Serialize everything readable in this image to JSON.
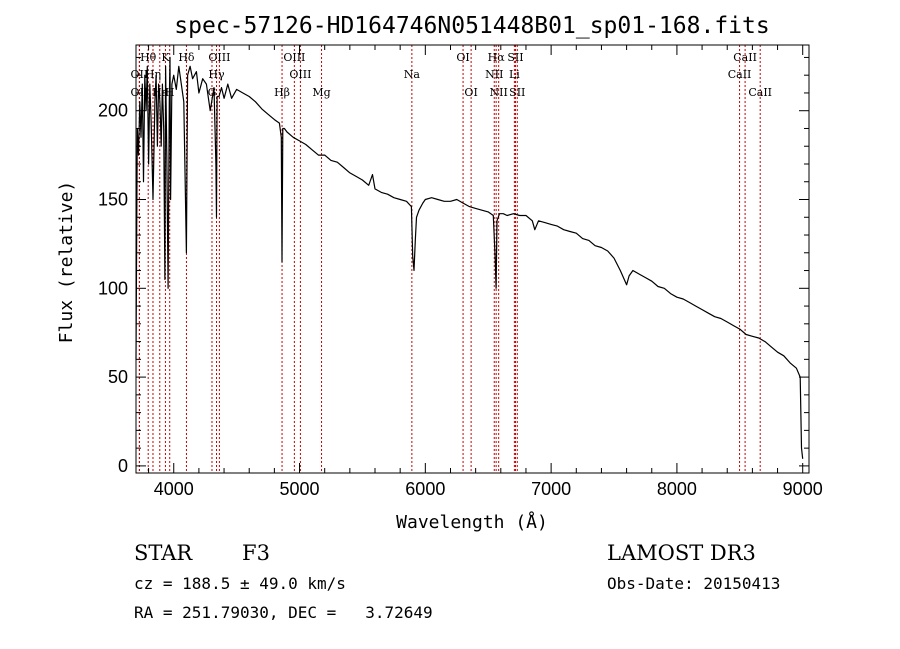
{
  "chart_data": {
    "type": "line",
    "title": "spec-57126-HD164746N051448B01_sp01-168.fits",
    "xlabel": "Wavelength (Å)",
    "ylabel": "Flux (relative)",
    "xlim": [
      3700,
      9050
    ],
    "ylim": [
      -4,
      237
    ],
    "xticks": [
      4000,
      5000,
      6000,
      7000,
      8000,
      9000
    ],
    "yticks": [
      0,
      50,
      100,
      150,
      200
    ],
    "series": [
      {
        "name": "spectrum",
        "x": [
          3700,
          3710,
          3720,
          3730,
          3740,
          3750,
          3760,
          3770,
          3780,
          3790,
          3800,
          3810,
          3820,
          3835,
          3850,
          3860,
          3870,
          3880,
          3890,
          3900,
          3910,
          3920,
          3930,
          3935,
          3945,
          3955,
          3965,
          3970,
          3975,
          3985,
          4000,
          4020,
          4040,
          4060,
          4080,
          4101,
          4110,
          4130,
          4150,
          4180,
          4200,
          4230,
          4260,
          4290,
          4320,
          4335,
          4340,
          4345,
          4360,
          4380,
          4400,
          4430,
          4460,
          4500,
          4550,
          4600,
          4650,
          4700,
          4750,
          4800,
          4840,
          4855,
          4861,
          4867,
          4880,
          4900,
          4950,
          5000,
          5050,
          5100,
          5150,
          5200,
          5250,
          5300,
          5350,
          5400,
          5450,
          5500,
          5550,
          5580,
          5600,
          5650,
          5700,
          5750,
          5800,
          5850,
          5889,
          5900,
          5910,
          5920,
          5930,
          5950,
          5980,
          6000,
          6050,
          6100,
          6150,
          6200,
          6250,
          6300,
          6350,
          6400,
          6450,
          6500,
          6540,
          6555,
          6563,
          6570,
          6590,
          6620,
          6650,
          6700,
          6750,
          6800,
          6850,
          6870,
          6900,
          6950,
          7000,
          7050,
          7100,
          7150,
          7200,
          7250,
          7300,
          7350,
          7400,
          7450,
          7500,
          7550,
          7600,
          7620,
          7650,
          7700,
          7750,
          7800,
          7850,
          7900,
          7950,
          8000,
          8050,
          8100,
          8150,
          8200,
          8250,
          8300,
          8350,
          8400,
          8450,
          8500,
          8550,
          8600,
          8650,
          8700,
          8750,
          8800,
          8850,
          8900,
          8950,
          8980,
          8990,
          9000
        ],
        "y": [
          60,
          190,
          175,
          205,
          185,
          215,
          160,
          220,
          200,
          225,
          170,
          215,
          195,
          150,
          205,
          220,
          180,
          215,
          205,
          180,
          215,
          190,
          105,
          225,
          175,
          100,
          205,
          230,
          150,
          215,
          220,
          212,
          225,
          215,
          205,
          120,
          220,
          225,
          218,
          222,
          210,
          218,
          215,
          200,
          213,
          170,
          140,
          208,
          208,
          213,
          207,
          215,
          207,
          212,
          210,
          208,
          205,
          201,
          198,
          195,
          193,
          185,
          115,
          190,
          190,
          188,
          185,
          183,
          181,
          178,
          175,
          175,
          172,
          171,
          168,
          165,
          163,
          161,
          158,
          164,
          156,
          154,
          153,
          151,
          150,
          149,
          146,
          118,
          110,
          127,
          140,
          144,
          148,
          150,
          151,
          150,
          149,
          149,
          150,
          148,
          146,
          145,
          144,
          143,
          141,
          118,
          100,
          138,
          142,
          142,
          141,
          142,
          141,
          141,
          138,
          133,
          138,
          137,
          136,
          135,
          133,
          132,
          131,
          128,
          127,
          124,
          123,
          121,
          117,
          110,
          102,
          107,
          110,
          108,
          106,
          104,
          101,
          100,
          97,
          95,
          94,
          92,
          90,
          88,
          86,
          84,
          83,
          81,
          79,
          77,
          74,
          73,
          72,
          70,
          67,
          64,
          62,
          58,
          55,
          50,
          10,
          4
        ]
      }
    ],
    "spectral_lines": [
      {
        "label": "Hθ",
        "wl": 3797,
        "row": 1
      },
      {
        "label": "OII",
        "wl": 3727,
        "row": 2
      },
      {
        "label": "Hη",
        "wl": 3835,
        "row": 2
      },
      {
        "label": "OII",
        "wl": 3727,
        "row": 3
      },
      {
        "label": "Hε",
        "wl": 3889,
        "row": 3
      },
      {
        "label": "K",
        "wl": 3934,
        "row": 1
      },
      {
        "label": "H",
        "wl": 3968,
        "row": 3
      },
      {
        "label": "Hδ",
        "wl": 4101,
        "row": 1
      },
      {
        "label": "G",
        "wl": 4304,
        "row": 3
      },
      {
        "label": "OIII",
        "wl": 4363,
        "row": 1
      },
      {
        "label": "Hγ",
        "wl": 4340,
        "row": 2
      },
      {
        "label": "Hβ",
        "wl": 4861,
        "row": 3
      },
      {
        "label": "OIII",
        "wl": 4959,
        "row": 1
      },
      {
        "label": "OIII",
        "wl": 5007,
        "row": 2
      },
      {
        "label": "Mg",
        "wl": 5175,
        "row": 3
      },
      {
        "label": "Na",
        "wl": 5893,
        "row": 2
      },
      {
        "label": "OI",
        "wl": 6300,
        "row": 1
      },
      {
        "label": "OI",
        "wl": 6364,
        "row": 3
      },
      {
        "label": "Hα",
        "wl": 6563,
        "row": 1
      },
      {
        "label": "NII",
        "wl": 6548,
        "row": 2
      },
      {
        "label": "NII",
        "wl": 6583,
        "row": 3
      },
      {
        "label": "SII",
        "wl": 6717,
        "row": 1
      },
      {
        "label": "Li",
        "wl": 6708,
        "row": 2
      },
      {
        "label": "SII",
        "wl": 6731,
        "row": 3
      },
      {
        "label": "CaII",
        "wl": 8542,
        "row": 1
      },
      {
        "label": "CaII",
        "wl": 8498,
        "row": 2
      },
      {
        "label": "CaII",
        "wl": 8662,
        "row": 3
      }
    ],
    "line_color": "#000000",
    "marker_color": "#cc0000"
  },
  "info": {
    "object_class": "STAR",
    "subclass": "F3",
    "survey": "LAMOST DR3",
    "cz": "cz = 188.5 ± 49.0 km/s",
    "obs_date": "Obs-Date: 20150413",
    "radec": "RA = 251.79030, DEC =   3.72649"
  }
}
